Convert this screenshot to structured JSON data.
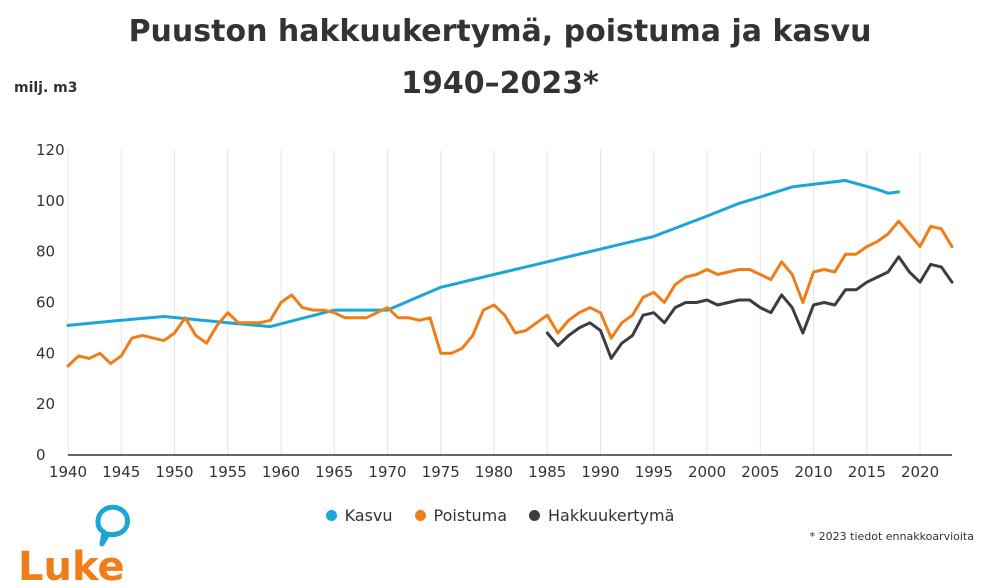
{
  "header": {
    "title_line1": "Puuston hakkuukertymä, poistuma ja kasvu",
    "title_line2": "1940–2023*",
    "unit": "milj. m3"
  },
  "footnote": "* 2023 tiedot ennakkoarvioita",
  "logo": {
    "text": "Luke",
    "color": "#ef7d1a",
    "bubble_color": "#1aa6d6"
  },
  "chart_data": {
    "type": "line",
    "title": "Puuston hakkuukertymä, poistuma ja kasvu 1940–2023*",
    "ylabel": "milj. m3",
    "xlabel": "",
    "xlim": [
      1940,
      2023
    ],
    "ylim": [
      0,
      120
    ],
    "x_ticks": [
      1940,
      1945,
      1950,
      1955,
      1960,
      1965,
      1970,
      1975,
      1980,
      1985,
      1990,
      1995,
      2000,
      2005,
      2010,
      2015,
      2020
    ],
    "y_ticks": [
      0,
      20,
      40,
      60,
      80,
      100,
      120
    ],
    "grid": "vertical",
    "legend_position": "bottom",
    "series": [
      {
        "name": "Kasvu",
        "color": "#1aa6d6",
        "x": [
          1940,
          1945,
          1949,
          1955,
          1959,
          1965,
          1970,
          1975,
          1980,
          1985,
          1990,
          1995,
          2000,
          2003,
          2005,
          2008,
          2010,
          2013,
          2016,
          2017,
          2018
        ],
        "y": [
          51,
          53,
          54.5,
          52,
          50.5,
          57,
          57,
          66,
          71,
          76,
          81,
          86,
          94,
          99,
          101.5,
          105.5,
          106.5,
          108,
          104.5,
          103,
          103.5
        ]
      },
      {
        "name": "Poistuma",
        "color": "#ef7d1a",
        "x": [
          1940,
          1941,
          1942,
          1943,
          1944,
          1945,
          1946,
          1947,
          1948,
          1949,
          1950,
          1951,
          1952,
          1953,
          1954,
          1955,
          1956,
          1957,
          1958,
          1959,
          1960,
          1961,
          1962,
          1963,
          1964,
          1965,
          1966,
          1967,
          1968,
          1969,
          1970,
          1971,
          1972,
          1973,
          1974,
          1975,
          1976,
          1977,
          1978,
          1979,
          1980,
          1981,
          1982,
          1983,
          1984,
          1985,
          1986,
          1987,
          1988,
          1989,
          1990,
          1991,
          1992,
          1993,
          1994,
          1995,
          1996,
          1997,
          1998,
          1999,
          2000,
          2001,
          2002,
          2003,
          2004,
          2005,
          2006,
          2007,
          2008,
          2009,
          2010,
          2011,
          2012,
          2013,
          2014,
          2015,
          2016,
          2017,
          2018,
          2019,
          2020,
          2021,
          2022,
          2023
        ],
        "y": [
          35,
          39,
          38,
          40,
          36,
          39,
          46,
          47,
          46,
          45,
          48,
          54,
          47,
          44,
          51,
          56,
          52,
          52,
          52,
          53,
          60,
          63,
          58,
          57,
          57,
          56,
          54,
          54,
          54,
          56,
          58,
          54,
          54,
          53,
          54,
          40,
          40,
          42,
          47,
          57,
          59,
          55,
          48,
          49,
          52,
          55,
          48,
          53,
          56,
          58,
          56,
          46,
          52,
          55,
          62,
          64,
          60,
          67,
          70,
          71,
          73,
          71,
          72,
          73,
          73,
          71,
          69,
          76,
          71,
          60,
          72,
          73,
          72,
          79,
          79,
          82,
          84,
          87,
          92,
          87,
          82,
          90,
          89,
          82
        ]
      },
      {
        "name": "Hakkuukertymä",
        "color": "#3a3d44",
        "x": [
          1985,
          1986,
          1987,
          1988,
          1989,
          1990,
          1991,
          1992,
          1993,
          1994,
          1995,
          1996,
          1997,
          1998,
          1999,
          2000,
          2001,
          2002,
          2003,
          2004,
          2005,
          2006,
          2007,
          2008,
          2009,
          2010,
          2011,
          2012,
          2013,
          2014,
          2015,
          2016,
          2017,
          2018,
          2019,
          2020,
          2021,
          2022,
          2023
        ],
        "y": [
          48,
          43,
          47,
          50,
          52,
          49,
          38,
          44,
          47,
          55,
          56,
          52,
          58,
          60,
          60,
          61,
          59,
          60,
          61,
          61,
          58,
          56,
          63,
          58,
          48,
          59,
          60,
          59,
          65,
          65,
          68,
          70,
          72,
          78,
          72,
          68,
          75,
          74,
          68
        ]
      }
    ]
  }
}
